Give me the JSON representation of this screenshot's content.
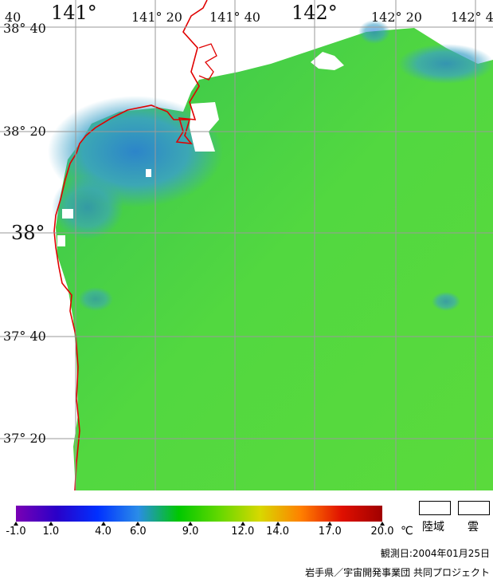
{
  "map": {
    "lon_labels": [
      "141°",
      "141° 20",
      "141° 40",
      "142°",
      "142° 20",
      "142° 4"
    ],
    "lat_labels": [
      "38° 40",
      "38° 20",
      "38°",
      "37° 40",
      "37° 20"
    ],
    "corner_label": "40"
  },
  "colorbar": {
    "ticks": [
      "-1.0",
      "1.0",
      "4.0",
      "6.0",
      "9.0",
      "12.0",
      "14.0",
      "17.0",
      "20.0"
    ],
    "tick_values": [
      -1.0,
      1.0,
      4.0,
      6.0,
      9.0,
      12.0,
      14.0,
      17.0,
      20.0
    ],
    "min": -1.0,
    "max": 20.0,
    "unit": "℃",
    "colors": [
      "#7a00b4",
      "#2a00c8",
      "#0030ff",
      "#2a8ce8",
      "#00c800",
      "#64d800",
      "#d8d800",
      "#ff8000",
      "#e01000",
      "#a00000"
    ]
  },
  "legend": {
    "land": "陸域",
    "cloud": "雲"
  },
  "observation_date": "観測日:2004年01月25日",
  "credit": "岩手県／宇宙開発事業団 共同プロジェクト",
  "colors": {
    "coast": "#e00000",
    "grid": "#9a9a9a",
    "water_green": "#4ad64a",
    "water_blue": "#2a8ce8"
  }
}
